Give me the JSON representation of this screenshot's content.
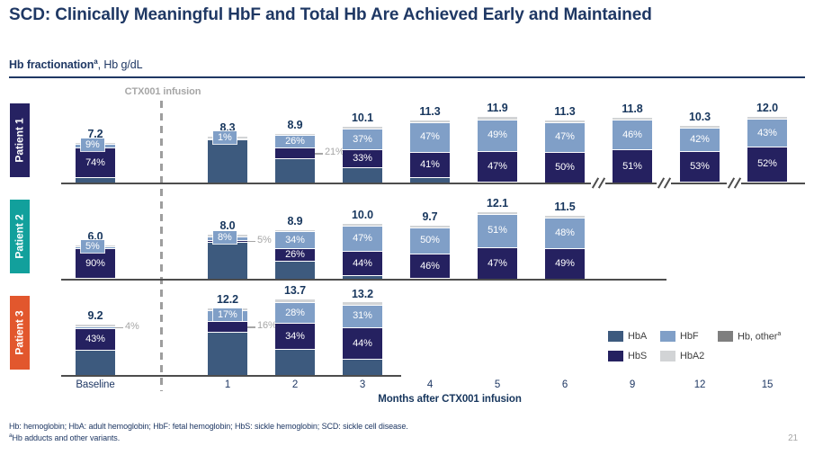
{
  "slide": {
    "title": "SCD: Clinically Meaningful HbF and Total Hb Are Achieved Early and Maintained",
    "subtitle_bold": "Hb fractionation",
    "subtitle_sup": "a",
    "subtitle_rest": ", Hb g/dL",
    "footnote1": "Hb: hemoglobin; HbA: adult hemoglobin; HbF: fetal hemoglobin; HbS: sickle hemoglobin; SCD: sickle cell disease.",
    "footnote2_sup": "a",
    "footnote2_text": "Hb adducts and other variants.",
    "page_number": "21"
  },
  "chart_data": {
    "type": "bar",
    "stacked": true,
    "title": "Hb fractionation, Hb g/dL",
    "xlabel": "Months after CTX001 infusion",
    "infusion_label": "CTX001 infusion",
    "categories": [
      "Baseline",
      "1",
      "2",
      "3",
      "4",
      "5",
      "6",
      "9",
      "12",
      "15"
    ],
    "axis_breaks_between": [
      [
        "6",
        "9"
      ],
      [
        "9",
        "12"
      ],
      [
        "12",
        "15"
      ]
    ],
    "colors": {
      "hba": "#3d5a7e",
      "hbs": "#252160",
      "hbf": "#809fc7",
      "hba2": "#d2d4d6",
      "other": "#7f7f7f",
      "patient1": "#262262",
      "patient2": "#12a09c",
      "patient3": "#e2572d",
      "annotation": "#a6a6a6",
      "accent_navy": "#1f3864"
    },
    "legend": [
      {
        "label": "HbA",
        "key": "hba"
      },
      {
        "label": "HbF",
        "key": "hbf"
      },
      {
        "label": "Hb, other",
        "sup": "a",
        "key": "other"
      },
      {
        "label": "HbS",
        "key": "hbs"
      },
      {
        "label": "HbA2",
        "key": "hba2"
      }
    ],
    "patients": [
      {
        "name": "Patient 1",
        "color_key": "patient1",
        "bars": [
          {
            "month": "Baseline",
            "total": 7.2,
            "segments": [
              {
                "frac": "hba",
                "pct": 14
              },
              {
                "frac": "hbs",
                "pct": 74,
                "label": "74%"
              },
              {
                "frac": "hbf",
                "pct": 9,
                "label": "9%"
              },
              {
                "frac": "hba2",
                "pct": 3
              }
            ]
          },
          {
            "month": "1",
            "total": 8.3,
            "segments": [
              {
                "frac": "hba",
                "pct": 96
              },
              {
                "frac": "hbf",
                "pct": 1,
                "label": "1%"
              },
              {
                "frac": "hba2",
                "pct": 3
              }
            ]
          },
          {
            "month": "2",
            "total": 8.9,
            "segments": [
              {
                "frac": "hba",
                "pct": 50
              },
              {
                "frac": "hbs",
                "pct": 21,
                "annotation": "21%"
              },
              {
                "frac": "hbf",
                "pct": 26,
                "label": "26%"
              },
              {
                "frac": "hba2",
                "pct": 3
              }
            ]
          },
          {
            "month": "3",
            "total": 10.1,
            "segments": [
              {
                "frac": "hba",
                "pct": 27
              },
              {
                "frac": "hbs",
                "pct": 33,
                "label": "33%"
              },
              {
                "frac": "hbf",
                "pct": 37,
                "label": "37%"
              },
              {
                "frac": "hba2",
                "pct": 3
              }
            ]
          },
          {
            "month": "4",
            "total": 11.3,
            "segments": [
              {
                "frac": "hba",
                "pct": 9
              },
              {
                "frac": "hbs",
                "pct": 41,
                "label": "41%"
              },
              {
                "frac": "hbf",
                "pct": 47,
                "label": "47%"
              },
              {
                "frac": "hba2",
                "pct": 3
              }
            ]
          },
          {
            "month": "5",
            "total": 11.9,
            "segments": [
              {
                "frac": "hba",
                "pct": 1
              },
              {
                "frac": "hbs",
                "pct": 47,
                "label": "47%"
              },
              {
                "frac": "hbf",
                "pct": 49,
                "label": "49%"
              },
              {
                "frac": "hba2",
                "pct": 3
              }
            ]
          },
          {
            "month": "6",
            "total": 11.3,
            "segments": [
              {
                "frac": "hbs",
                "pct": 50,
                "label": "50%"
              },
              {
                "frac": "hbf",
                "pct": 47,
                "label": "47%"
              },
              {
                "frac": "hba2",
                "pct": 3
              }
            ]
          },
          {
            "month": "9",
            "total": 11.8,
            "segments": [
              {
                "frac": "hbs",
                "pct": 51,
                "label": "51%"
              },
              {
                "frac": "hbf",
                "pct": 46,
                "label": "46%"
              },
              {
                "frac": "hba2",
                "pct": 3
              }
            ]
          },
          {
            "month": "12",
            "total": 10.3,
            "segments": [
              {
                "frac": "hba",
                "pct": 2
              },
              {
                "frac": "hbs",
                "pct": 53,
                "label": "53%"
              },
              {
                "frac": "hbf",
                "pct": 42,
                "label": "42%"
              },
              {
                "frac": "hba2",
                "pct": 3
              }
            ]
          },
          {
            "month": "15",
            "total": 12.0,
            "segments": [
              {
                "frac": "hba",
                "pct": 2
              },
              {
                "frac": "hbs",
                "pct": 52,
                "label": "52%"
              },
              {
                "frac": "hbf",
                "pct": 43,
                "label": "43%"
              },
              {
                "frac": "hba2",
                "pct": 3
              }
            ]
          }
        ]
      },
      {
        "name": "Patient 2",
        "color_key": "patient2",
        "bars": [
          {
            "month": "Baseline",
            "total": 6.0,
            "segments": [
              {
                "frac": "hba",
                "pct": 2
              },
              {
                "frac": "hbs",
                "pct": 90,
                "label": "90%"
              },
              {
                "frac": "hbf",
                "pct": 5,
                "label": "5%"
              },
              {
                "frac": "hba2",
                "pct": 3
              }
            ]
          },
          {
            "month": "1",
            "total": 8.0,
            "segments": [
              {
                "frac": "hba",
                "pct": 84
              },
              {
                "frac": "hbs",
                "pct": 5,
                "annotation": "5%"
              },
              {
                "frac": "hbf",
                "pct": 8,
                "label": "8%"
              },
              {
                "frac": "hba2",
                "pct": 3
              }
            ]
          },
          {
            "month": "2",
            "total": 8.9,
            "segments": [
              {
                "frac": "hba",
                "pct": 37
              },
              {
                "frac": "hbs",
                "pct": 26,
                "label": "26%"
              },
              {
                "frac": "hbf",
                "pct": 34,
                "label": "34%"
              },
              {
                "frac": "hba2",
                "pct": 3
              }
            ]
          },
          {
            "month": "3",
            "total": 10.0,
            "segments": [
              {
                "frac": "hba",
                "pct": 6
              },
              {
                "frac": "hbs",
                "pct": 44,
                "label": "44%"
              },
              {
                "frac": "hbf",
                "pct": 47,
                "label": "47%"
              },
              {
                "frac": "hba2",
                "pct": 3
              }
            ]
          },
          {
            "month": "4",
            "total": 9.7,
            "segments": [
              {
                "frac": "hba",
                "pct": 1
              },
              {
                "frac": "hbs",
                "pct": 46,
                "label": "46%"
              },
              {
                "frac": "hbf",
                "pct": 50,
                "label": "50%"
              },
              {
                "frac": "hba2",
                "pct": 3
              }
            ]
          },
          {
            "month": "5",
            "total": 12.1,
            "segments": [
              {
                "frac": "hbs",
                "pct": 47,
                "label": "47%"
              },
              {
                "frac": "hbf",
                "pct": 51,
                "label": "51%"
              },
              {
                "frac": "hba2",
                "pct": 2
              }
            ]
          },
          {
            "month": "6",
            "total": 11.5,
            "segments": [
              {
                "frac": "hbs",
                "pct": 49,
                "label": "49%"
              },
              {
                "frac": "hbf",
                "pct": 48,
                "label": "48%"
              },
              {
                "frac": "hba2",
                "pct": 3
              }
            ]
          }
        ]
      },
      {
        "name": "Patient 3",
        "color_key": "patient3",
        "bars": [
          {
            "month": "Baseline",
            "total": 9.2,
            "segments": [
              {
                "frac": "hba",
                "pct": 50
              },
              {
                "frac": "hbs",
                "pct": 43,
                "label": "43%"
              },
              {
                "frac": "hbf",
                "pct": 4,
                "annotation": "4%"
              },
              {
                "frac": "hba2",
                "pct": 3
              }
            ]
          },
          {
            "month": "1",
            "total": 12.2,
            "segments": [
              {
                "frac": "hba",
                "pct": 64
              },
              {
                "frac": "hbs",
                "pct": 16,
                "annotation": "16%"
              },
              {
                "frac": "hbf",
                "pct": 17,
                "label": "17%"
              },
              {
                "frac": "hba2",
                "pct": 3
              }
            ]
          },
          {
            "month": "2",
            "total": 13.7,
            "segments": [
              {
                "frac": "hba",
                "pct": 35
              },
              {
                "frac": "hbs",
                "pct": 34,
                "label": "34%"
              },
              {
                "frac": "hbf",
                "pct": 28,
                "label": "28%"
              },
              {
                "frac": "hba2",
                "pct": 3
              }
            ]
          },
          {
            "month": "3",
            "total": 13.2,
            "segments": [
              {
                "frac": "hba",
                "pct": 22
              },
              {
                "frac": "hbs",
                "pct": 44,
                "label": "44%"
              },
              {
                "frac": "hbf",
                "pct": 31,
                "label": "31%"
              },
              {
                "frac": "hba2",
                "pct": 3
              }
            ]
          }
        ]
      }
    ]
  }
}
